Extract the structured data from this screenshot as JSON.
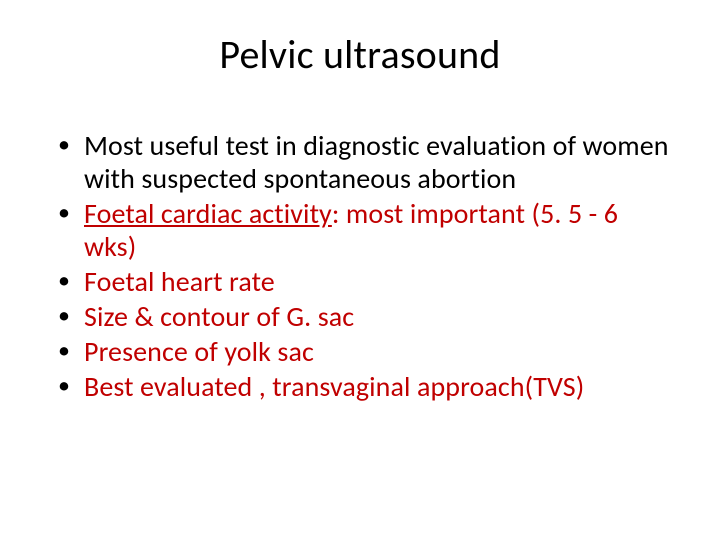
{
  "colors": {
    "background": "#ffffff",
    "text": "#000000",
    "accent": "#c00000"
  },
  "typography": {
    "title_fontsize": 40,
    "bullet_fontsize": 28,
    "font_family": "Calibri"
  },
  "slide": {
    "title": "Pelvic ultrasound",
    "bullets": [
      {
        "text": "Most useful test in diagnostic evaluation of women with suspected spontaneous abortion",
        "color": "#000000"
      },
      {
        "prefix_underline": "Foetal cardiac activity",
        "rest": ": most important (5. 5 - 6 wks)",
        "color": "#c00000"
      },
      {
        "text": "Foetal heart rate",
        "color": "#c00000"
      },
      {
        "text": "Size & contour of G. sac",
        "color": "#c00000"
      },
      {
        "text": "Presence of yolk sac",
        "color": "#c00000"
      },
      {
        "text": "Best evaluated , transvaginal approach(TVS)",
        "color": "#c00000"
      }
    ]
  }
}
